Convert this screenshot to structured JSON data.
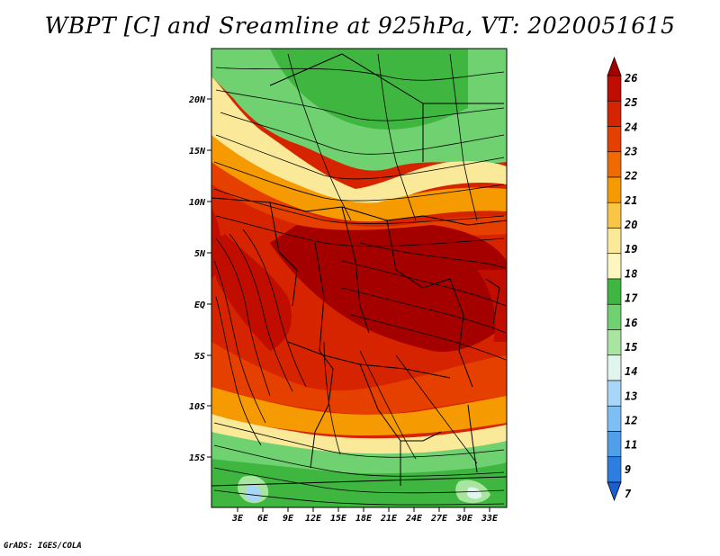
{
  "title": "WBPT [C] and Sreamline at 925hPa, VT: 2020051615",
  "credit": "GrADS: IGES/COLA",
  "y_labels": [
    "20N",
    "15N",
    "10N",
    "5N",
    "EQ",
    "5S",
    "10S",
    "15S"
  ],
  "x_labels": [
    "3E",
    "6E",
    "9E",
    "12E",
    "15E",
    "18E",
    "21E",
    "24E",
    "27E",
    "30E",
    "33E"
  ],
  "colorbar": {
    "levels": [
      "26",
      "25",
      "24",
      "23",
      "22",
      "21",
      "20",
      "19",
      "18",
      "17",
      "16",
      "15",
      "14",
      "13",
      "12",
      "11",
      "9",
      "7"
    ],
    "colors": [
      "#a50000",
      "#c00d00",
      "#d72400",
      "#e54000",
      "#ef6a00",
      "#f59a00",
      "#f8c644",
      "#fbe99a",
      "#fdf6c0",
      "#3fb63f",
      "#6fd16f",
      "#a8e6a0",
      "#dff5ee",
      "#a8d6f8",
      "#7dbff4",
      "#4f9fea",
      "#2c7fe0",
      "#1a5fd0"
    ]
  }
}
